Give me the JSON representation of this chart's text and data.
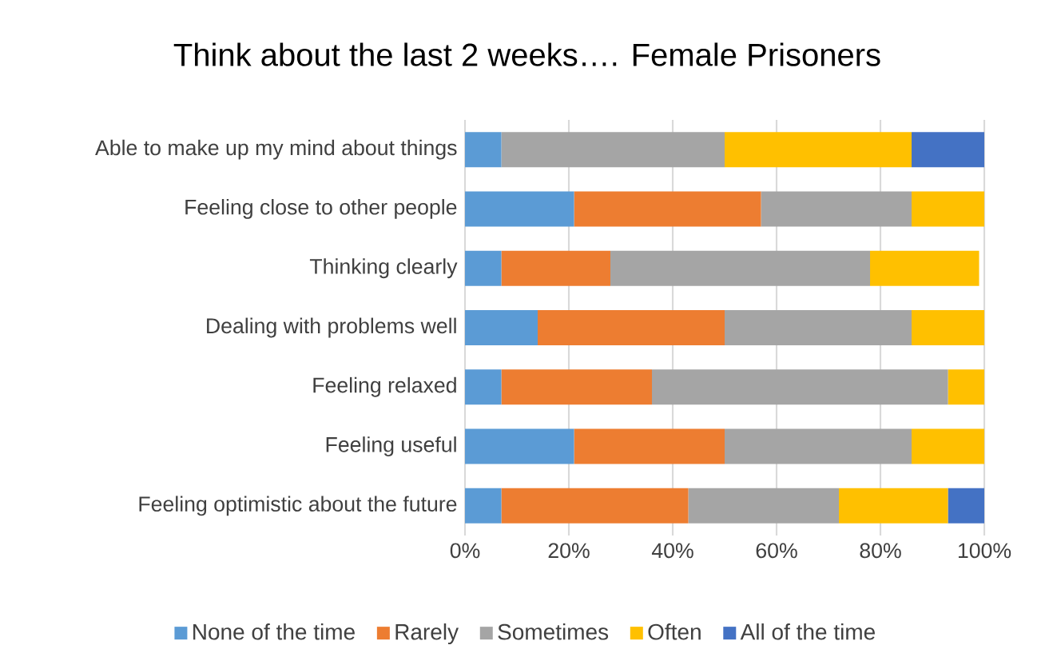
{
  "chart_data": {
    "type": "bar",
    "orientation": "horizontal",
    "stacked": true,
    "title": "Think about the last 2 weeks…. Female Prisoners",
    "categories": [
      "Able to make up my mind about things",
      "Feeling close to other people",
      "Thinking clearly",
      "Dealing with problems well",
      "Feeling relaxed",
      "Feeling useful",
      "Feeling optimistic about the future"
    ],
    "series": [
      {
        "name": "None of the time",
        "color": "#5b9bd5",
        "values": [
          7,
          21,
          7,
          14,
          7,
          21,
          7
        ]
      },
      {
        "name": "Rarely",
        "color": "#ed7d31",
        "values": [
          0,
          36,
          21,
          36,
          29,
          29,
          36
        ]
      },
      {
        "name": "Sometimes",
        "color": "#a5a5a5",
        "values": [
          43,
          29,
          50,
          36,
          57,
          36,
          29
        ]
      },
      {
        "name": "Often",
        "color": "#ffc000",
        "values": [
          36,
          14,
          21,
          14,
          7,
          14,
          21
        ]
      },
      {
        "name": "All of the time",
        "color": "#4472c4",
        "values": [
          14,
          0,
          0,
          0,
          0,
          0,
          7
        ]
      }
    ],
    "xlim": [
      0,
      100
    ],
    "xticks": [
      {
        "value": 0,
        "label": "0%"
      },
      {
        "value": 20,
        "label": "20%"
      },
      {
        "value": 40,
        "label": "40%"
      },
      {
        "value": 60,
        "label": "60%"
      },
      {
        "value": 80,
        "label": "80%"
      },
      {
        "value": 100,
        "label": "100%"
      }
    ],
    "grid": "x",
    "legend": "bottom"
  }
}
